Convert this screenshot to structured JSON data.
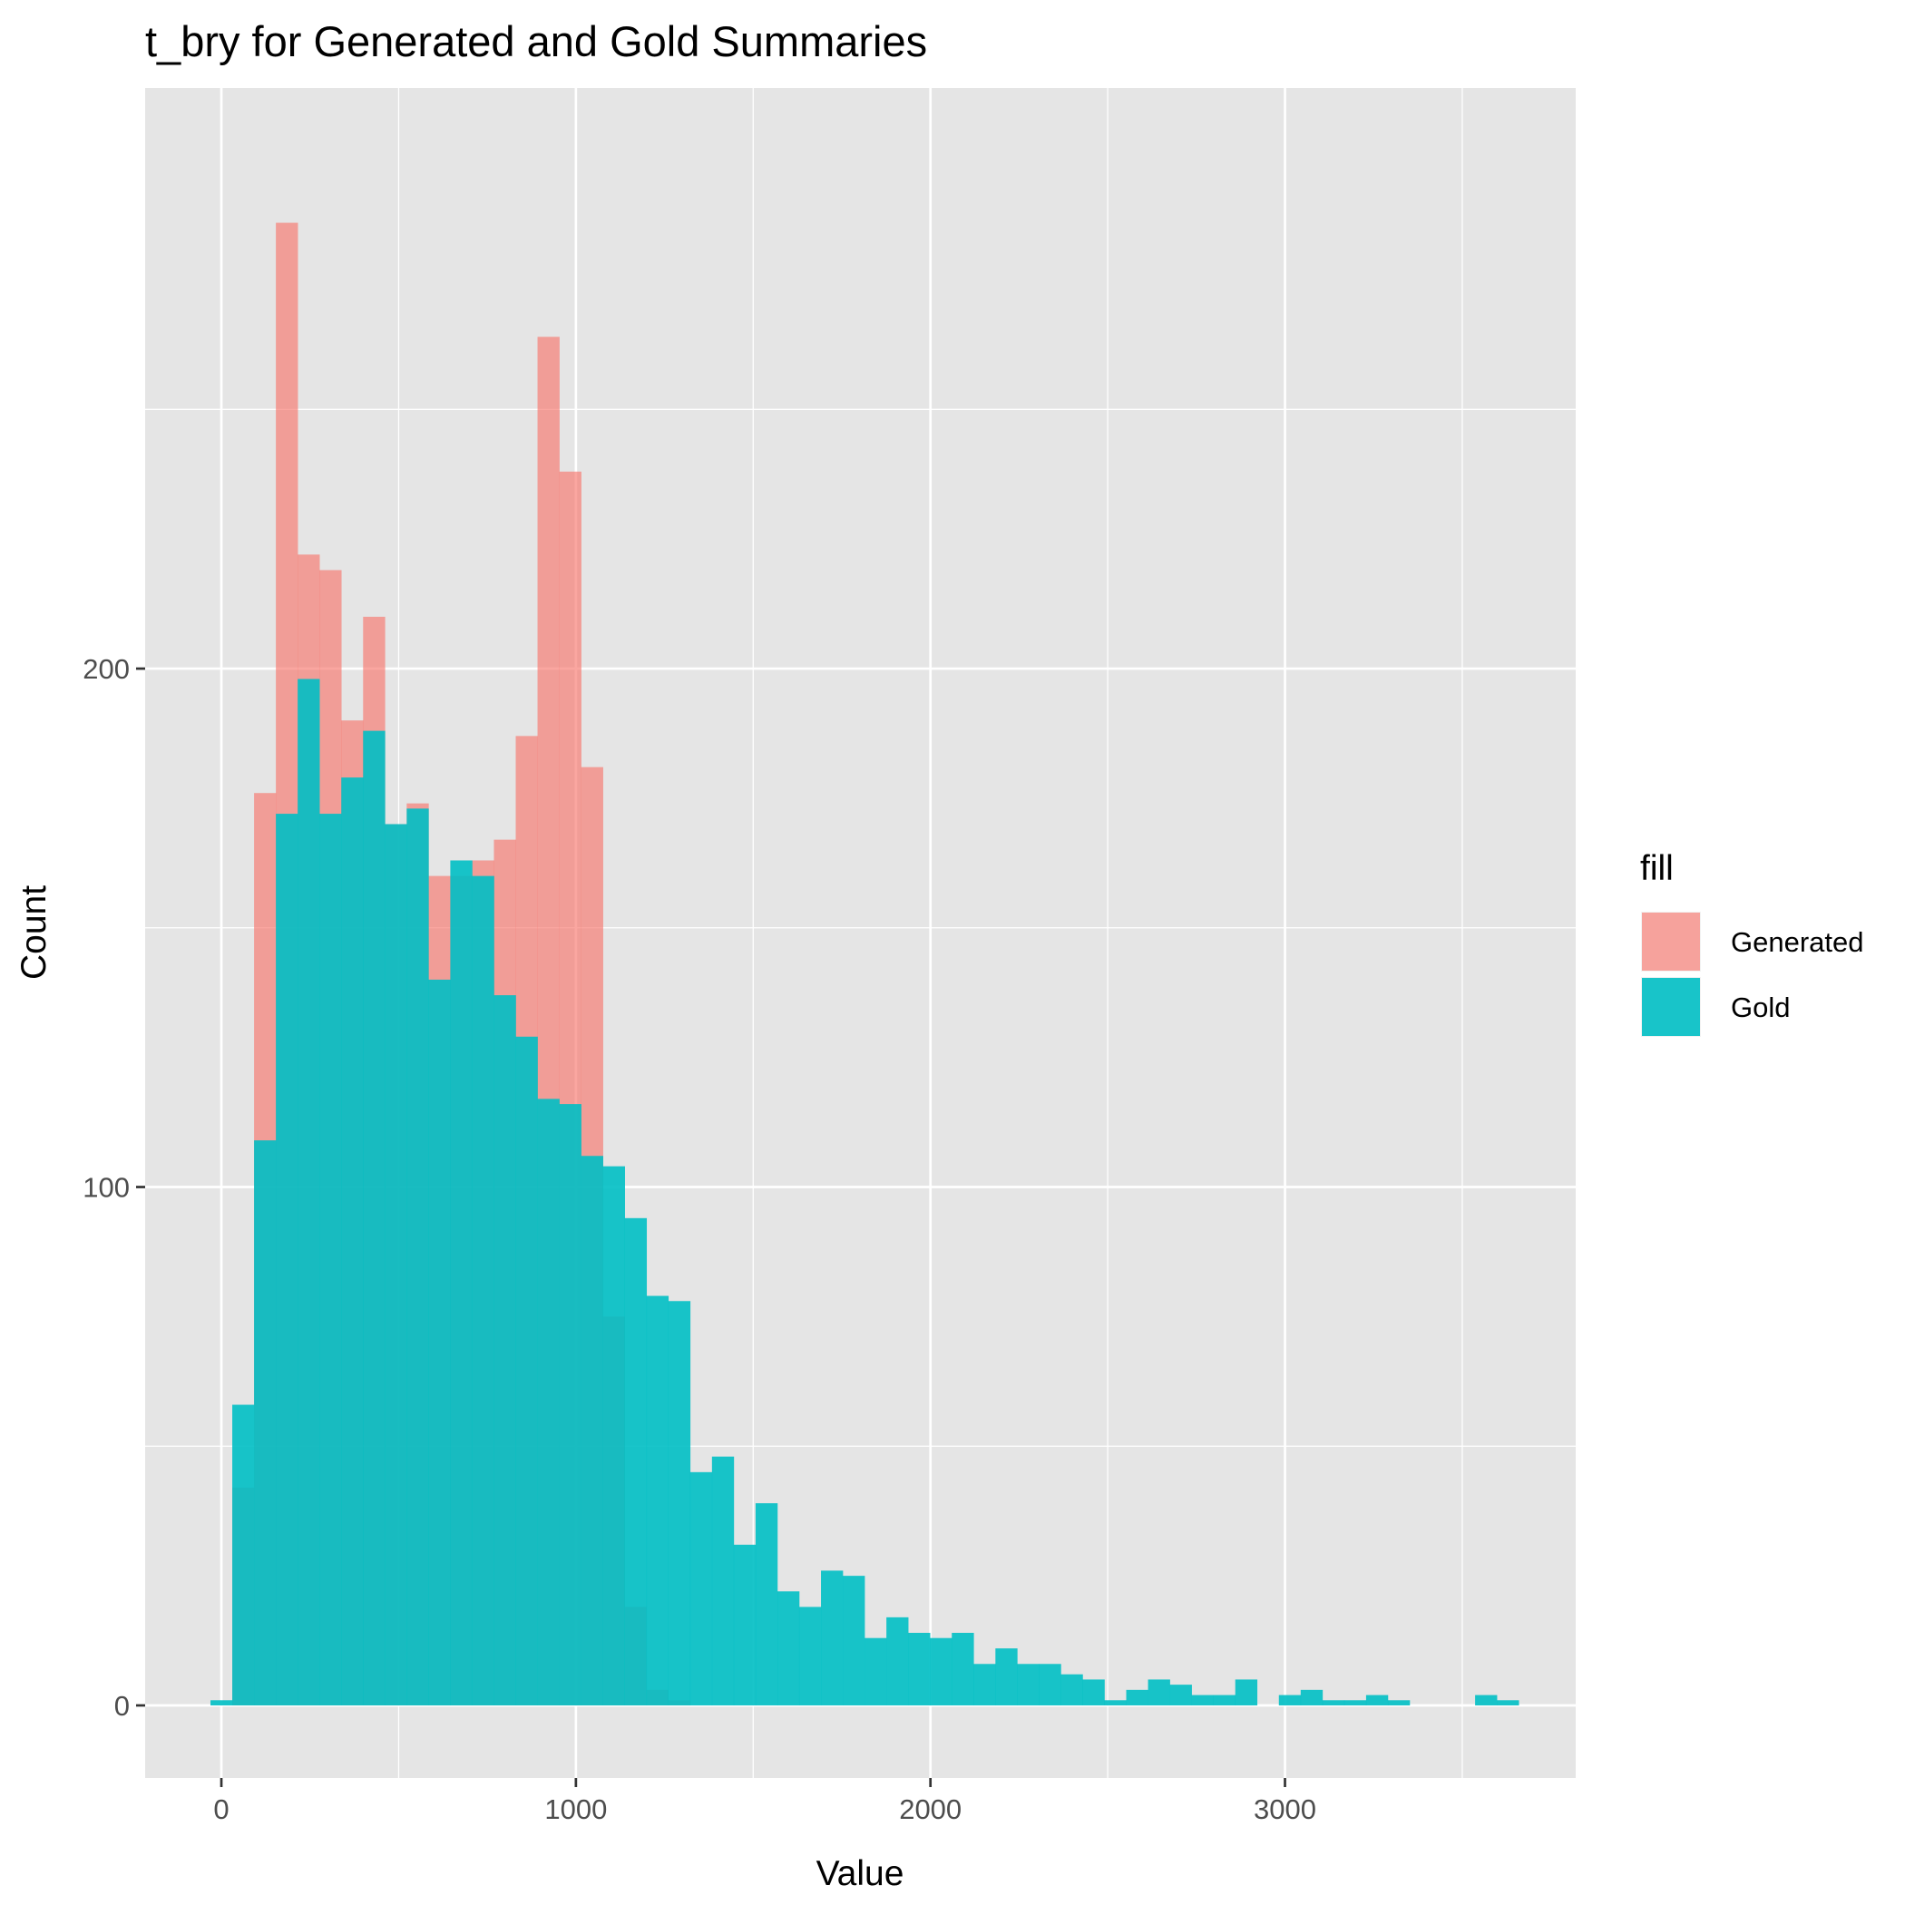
{
  "chart_data": {
    "type": "bar",
    "title": "t_bry for Generated and Gold Summaries",
    "xlabel": "Value",
    "ylabel": "Count",
    "xlim": [
      -215,
      3820
    ],
    "ylim": [
      -14,
      312
    ],
    "x_ticks": [
      0,
      1000,
      2000,
      3000
    ],
    "y_ticks": [
      0,
      100,
      200
    ],
    "bin_width": 61.5,
    "grid": true,
    "legend": {
      "title": "fill",
      "position": "right",
      "entries": [
        "Generated",
        "Gold"
      ]
    },
    "colors": {
      "Generated": "#f8766d",
      "Gold": "#00bfc4",
      "panel": "#e5e5e5",
      "grid": "#ffffff"
    },
    "bin_centers": [
      0,
      61.5,
      123,
      184.5,
      246,
      307.5,
      369,
      430.5,
      492,
      553.5,
      615,
      676.5,
      738,
      799.5,
      861,
      922.5,
      984,
      1045.5,
      1107,
      1168.5,
      1230,
      1291.5,
      1353,
      1414.5,
      1476,
      1537.5,
      1599,
      1660.5,
      1722,
      1783.5,
      1845,
      1906.5,
      1968,
      2029.5,
      2091,
      2152.5,
      2214,
      2275.5,
      2337,
      2398.5,
      2460,
      2521.5,
      2583,
      2644.5,
      2706,
      2767.5,
      2829,
      2890.5,
      2952,
      3013.5,
      3075,
      3136.5,
      3198,
      3259.5,
      3321,
      3382.5,
      3444,
      3505.5,
      3567,
      3628.5
    ],
    "series": [
      {
        "name": "Generated",
        "values": [
          0,
          42,
          176,
          286,
          222,
          219,
          190,
          210,
          170,
          174,
          160,
          160,
          163,
          167,
          187,
          264,
          238,
          181,
          75,
          19,
          3,
          1,
          0,
          0,
          0,
          0,
          0,
          0,
          0,
          0,
          0,
          0,
          0,
          0,
          0,
          0,
          0,
          0,
          0,
          0,
          0,
          0,
          0,
          0,
          0,
          0,
          0,
          0,
          0,
          0,
          0,
          0,
          0,
          0,
          0,
          0,
          0,
          0,
          0,
          0
        ]
      },
      {
        "name": "Gold",
        "values": [
          1,
          58,
          109,
          172,
          198,
          172,
          179,
          188,
          170,
          173,
          140,
          163,
          160,
          137,
          129,
          117,
          116,
          106,
          104,
          94,
          79,
          78,
          45,
          48,
          31,
          39,
          22,
          19,
          26,
          25,
          13,
          17,
          14,
          13,
          14,
          8,
          11,
          8,
          8,
          6,
          5,
          1,
          3,
          5,
          4,
          2,
          2,
          5,
          0,
          2,
          3,
          1,
          1,
          2,
          1,
          0,
          0,
          0,
          2,
          1
        ]
      }
    ]
  }
}
